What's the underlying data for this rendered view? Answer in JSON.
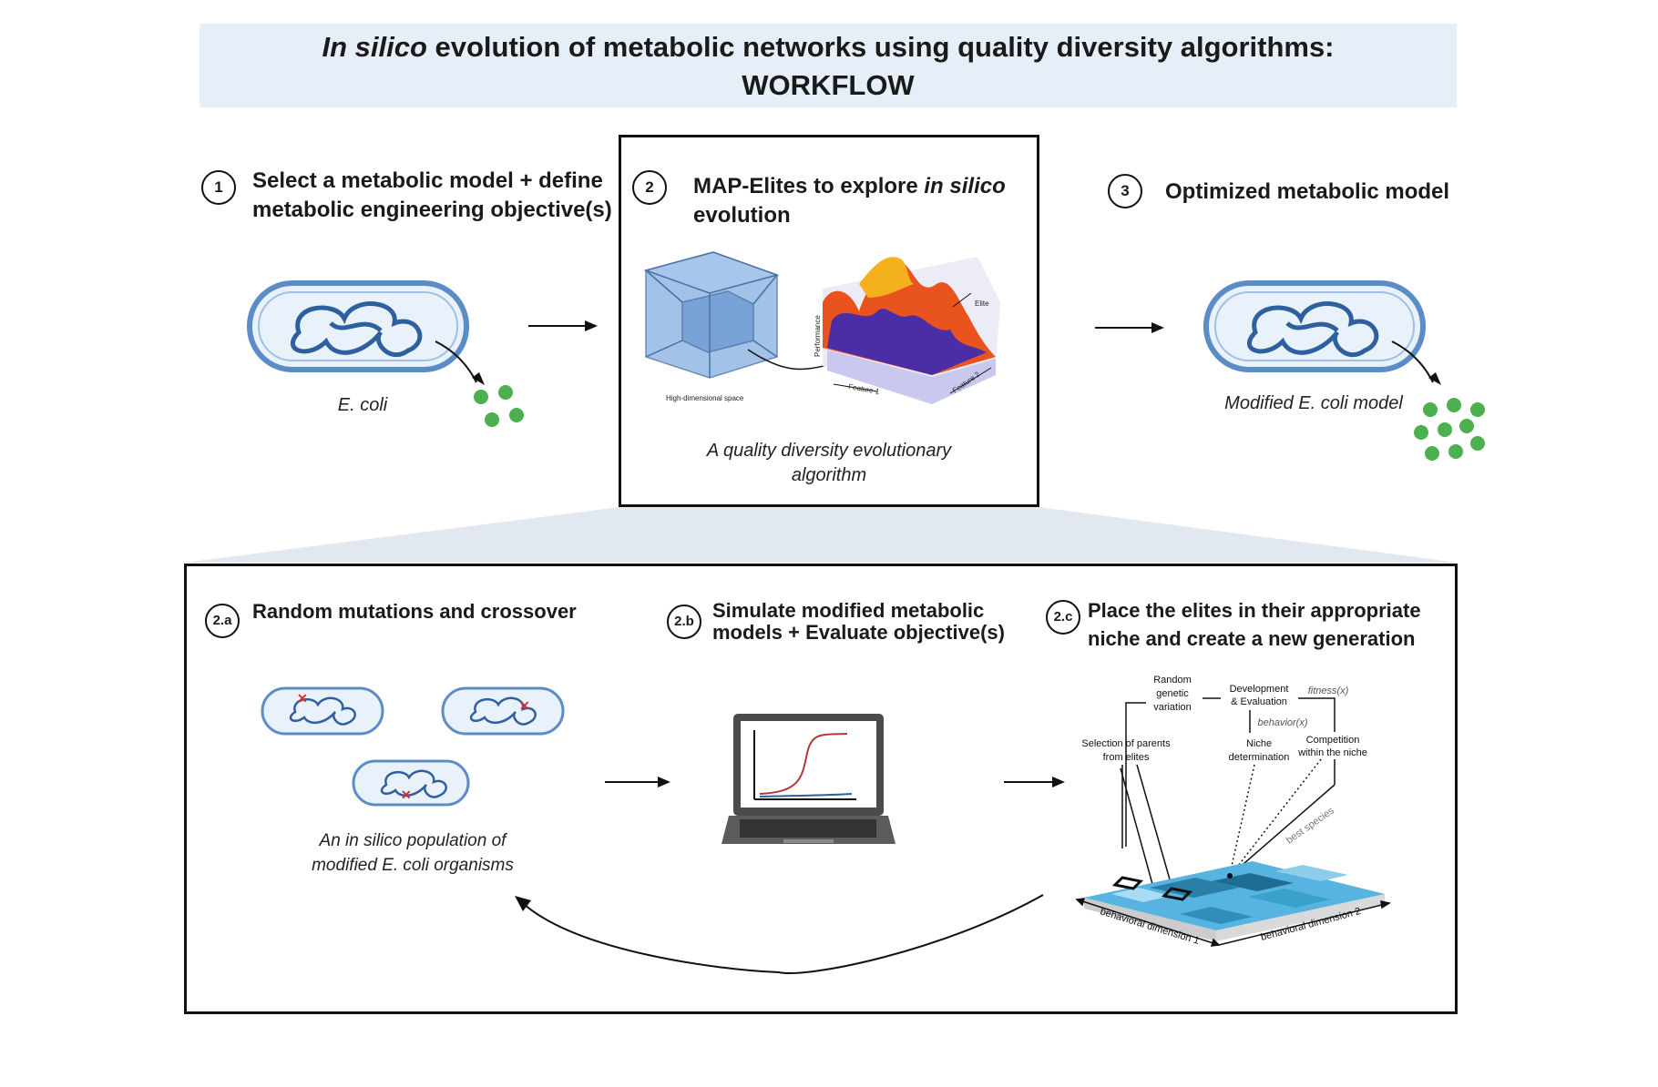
{
  "title": {
    "italic_prefix": "In silico",
    "rest": " evolution of metabolic networks using quality diversity algorithms:",
    "line2": "WORKFLOW"
  },
  "steps": {
    "s1": {
      "number": "1",
      "line1": "Select a metabolic model + define",
      "line2": "metabolic engineering objective(s)",
      "caption": "E. coli"
    },
    "s2": {
      "number": "2",
      "line1_prefix": "MAP-Elites to explore ",
      "line1_italic": "in silico",
      "line2": "evolution",
      "caption_line1": "A quality diversity evolutionary",
      "caption_line2": "algorithm",
      "label_space": "High-dimensional space",
      "label_performance": "Performance",
      "label_feature1": "Feature 1",
      "label_feature2": "Feature 2",
      "label_elite": "Elite"
    },
    "s3": {
      "number": "3",
      "title": "Optimized metabolic model",
      "caption": "Modified E. coli model"
    },
    "s2a": {
      "number": "2.a",
      "title": "Random mutations and crossover",
      "caption_line1": "An in silico population of",
      "caption_line2": "modified E. coli organisms"
    },
    "s2b": {
      "number": "2.b",
      "line1": "Simulate  modified metabolic",
      "line2": "models + Evaluate objective(s)"
    },
    "s2c": {
      "number": "2.c",
      "line1": "Place the elites in their appropriate",
      "line2": "niche and create a new generation",
      "labels": {
        "random_1": "Random",
        "random_2": "genetic",
        "random_3": "variation",
        "dev_1": "Development",
        "dev_2": "& Evaluation",
        "fitness": "fitness(x)",
        "behavior": "behavior(x)",
        "selection_1": "Selection of parents",
        "selection_2": "from elites",
        "niche_1": "Niche",
        "niche_2": "determination",
        "comp_1": "Competition",
        "comp_2": "within the niche",
        "best": "best species",
        "dim1": "behavioral dimension 1",
        "dim2": "behavioral dimension 2"
      }
    }
  },
  "colors": {
    "banner": "#e6eef8",
    "cell_fill": "#e9f2fb",
    "cell_stroke": "#5b8cc6",
    "dna": "#2e5f9e",
    "particle": "#4caf50",
    "mutation": "#d32f2f"
  }
}
